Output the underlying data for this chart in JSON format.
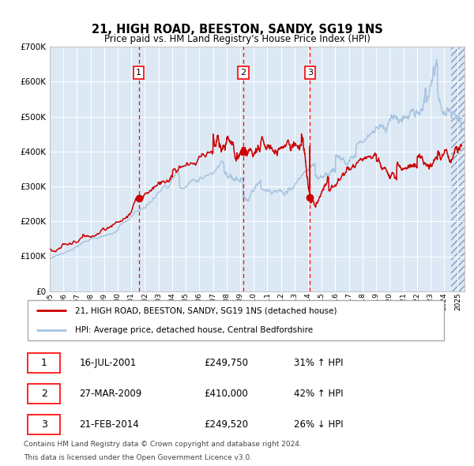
{
  "title": "21, HIGH ROAD, BEESTON, SANDY, SG19 1NS",
  "subtitle": "Price paid vs. HM Land Registry's House Price Index (HPI)",
  "legend_line1": "21, HIGH ROAD, BEESTON, SANDY, SG19 1NS (detached house)",
  "legend_line2": "HPI: Average price, detached house, Central Bedfordshire",
  "footer1": "Contains HM Land Registry data © Crown copyright and database right 2024.",
  "footer2": "This data is licensed under the Open Government Licence v3.0.",
  "sales": [
    {
      "num": 1,
      "date": "16-JUL-2001",
      "price": 249750,
      "hpi_pct": "31% ↑ HPI",
      "x_year": 2001.54
    },
    {
      "num": 2,
      "date": "27-MAR-2009",
      "price": 410000,
      "hpi_pct": "42% ↑ HPI",
      "x_year": 2009.23
    },
    {
      "num": 3,
      "date": "21-FEB-2014",
      "price": 249520,
      "hpi_pct": "26% ↓ HPI",
      "x_year": 2014.14
    }
  ],
  "hpi_color": "#a8c4e0",
  "price_color": "#cc0000",
  "plot_bg": "#dce9f5",
  "ylim": [
    0,
    700000
  ],
  "xlim_start": 1995.0,
  "xlim_end": 2025.5,
  "yticks": [
    0,
    100000,
    200000,
    300000,
    400000,
    500000,
    600000,
    700000
  ],
  "ytick_labels": [
    "£0",
    "£100K",
    "£200K",
    "£300K",
    "£400K",
    "£500K",
    "£600K",
    "£700K"
  ],
  "table_rows": [
    [
      "1",
      "16-JUL-2001",
      "£249,750",
      "31% ↑ HPI"
    ],
    [
      "2",
      "27-MAR-2009",
      "£410,000",
      "42% ↑ HPI"
    ],
    [
      "3",
      "21-FEB-2014",
      "£249,520",
      "26% ↓ HPI"
    ]
  ]
}
